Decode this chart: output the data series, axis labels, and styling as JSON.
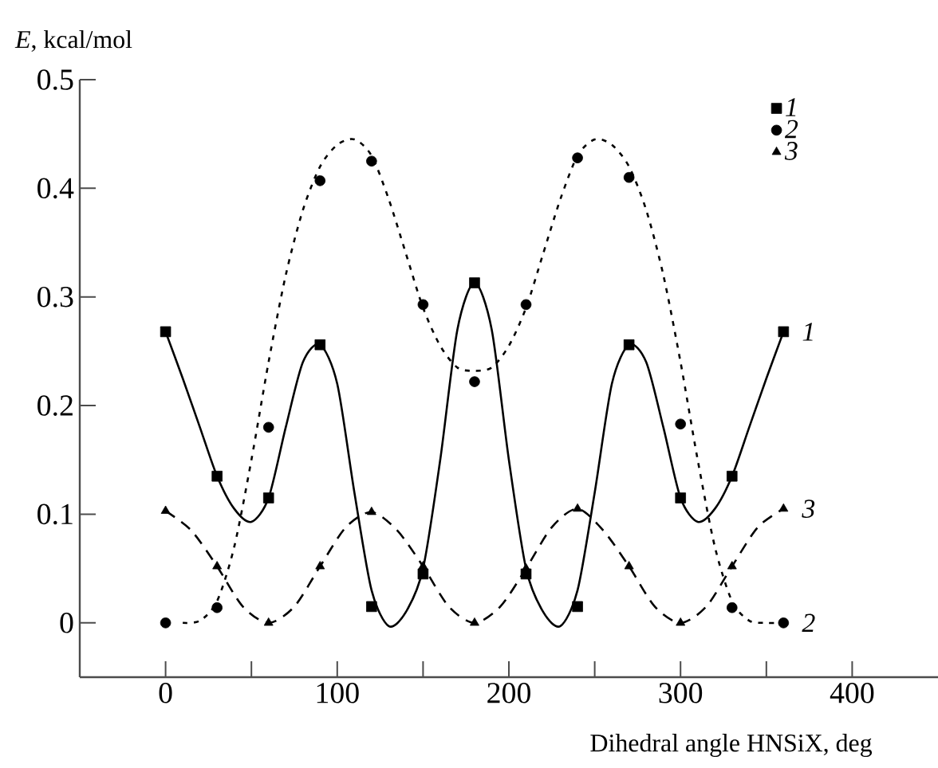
{
  "chart_data": {
    "type": "scatter",
    "xlabel": "Dihedral angle HNSiX, deg",
    "ylabel": "*E*, kcal/mol",
    "xlim": [
      -50,
      450
    ],
    "ylim": [
      -0.05,
      0.5
    ],
    "xticks": [
      0,
      {
        "value": 50,
        "label": null
      },
      100,
      {
        "value": 150,
        "label": null
      },
      200,
      {
        "value": 250,
        "label": null
      },
      300,
      {
        "value": 350,
        "label": null
      },
      400
    ],
    "yticks": [
      0,
      0.1,
      0.2,
      0.3,
      0.4,
      0.5
    ],
    "grid": false,
    "legend": "top right",
    "series": [
      {
        "name": "1",
        "marker": "square",
        "color": "#000000",
        "x": [
          0,
          30,
          60,
          90,
          120,
          150,
          180,
          210,
          240,
          270,
          300,
          330,
          360
        ],
        "values": [
          0.268,
          0.135,
          0.115,
          0.256,
          0.015,
          0.045,
          0.313,
          0.045,
          0.015,
          0.256,
          0.115,
          0.135,
          0.268
        ]
      },
      {
        "name": "2",
        "marker": "circle",
        "color": "#000000",
        "x": [
          0,
          30,
          60,
          90,
          120,
          150,
          180,
          210,
          240,
          270,
          300,
          330,
          360
        ],
        "values": [
          0,
          0.014,
          0.18,
          0.407,
          0.425,
          0.293,
          0.222,
          0.293,
          0.428,
          0.41,
          0.183,
          0.014,
          0
        ]
      },
      {
        "name": "3",
        "marker": "triangle",
        "color": "#000000",
        "x": [
          0,
          30,
          60,
          90,
          120,
          150,
          180,
          210,
          240,
          270,
          300,
          330,
          360
        ],
        "values": [
          0.103,
          0.052,
          0,
          0.052,
          0.102,
          0.052,
          0,
          0.05,
          0.105,
          0.052,
          0,
          0.052,
          0.105
        ]
      },
      {
        "name": "1",
        "type": "line",
        "line_style": "solid",
        "color": "#000000",
        "x": [
          0,
          10,
          20,
          30,
          40,
          50,
          60,
          70,
          80,
          90,
          100,
          110,
          120,
          130,
          140,
          150,
          160,
          170,
          180,
          190,
          200,
          210,
          220,
          230,
          240,
          250,
          260,
          270,
          280,
          290,
          300,
          310,
          320,
          330,
          340,
          350,
          360
        ],
        "values": [
          0.268,
          0.225,
          0.18,
          0.135,
          0.105,
          0.093,
          0.115,
          0.18,
          0.24,
          0.256,
          0.22,
          0.12,
          0.03,
          -0.003,
          0.01,
          0.05,
          0.15,
          0.27,
          0.313,
          0.27,
          0.15,
          0.05,
          0.01,
          -0.003,
          0.03,
          0.12,
          0.22,
          0.256,
          0.24,
          0.18,
          0.115,
          0.093,
          0.105,
          0.135,
          0.18,
          0.225,
          0.268
        ]
      },
      {
        "name": "2",
        "type": "line",
        "line_style": "dotted",
        "color": "#000000",
        "x": [
          10,
          20,
          30,
          40,
          50,
          60,
          70,
          80,
          90,
          100,
          110,
          120,
          130,
          140,
          150,
          160,
          170,
          180,
          190,
          200,
          210,
          220,
          230,
          240,
          250,
          260,
          270,
          280,
          290,
          300,
          310,
          320,
          330,
          340,
          350,
          360
        ],
        "values": [
          0,
          0.002,
          0.02,
          0.07,
          0.15,
          0.24,
          0.32,
          0.38,
          0.42,
          0.44,
          0.445,
          0.43,
          0.39,
          0.34,
          0.29,
          0.255,
          0.235,
          0.232,
          0.235,
          0.255,
          0.29,
          0.34,
          0.39,
          0.43,
          0.445,
          0.44,
          0.42,
          0.38,
          0.32,
          0.24,
          0.15,
          0.07,
          0.02,
          0.002,
          0,
          0
        ]
      },
      {
        "name": "3",
        "type": "line",
        "line_style": "dashed",
        "color": "#000000",
        "x": [
          0,
          15,
          30,
          45,
          60,
          75,
          90,
          105,
          120,
          135,
          150,
          165,
          180,
          195,
          210,
          225,
          240,
          255,
          270,
          285,
          300,
          315,
          330,
          345,
          360
        ],
        "values": [
          0.103,
          0.085,
          0.052,
          0.015,
          0,
          0.015,
          0.052,
          0.088,
          0.102,
          0.085,
          0.052,
          0.015,
          0,
          0.015,
          0.05,
          0.088,
          0.105,
          0.085,
          0.052,
          0.015,
          0,
          0.015,
          0.052,
          0.088,
          0.105
        ]
      }
    ]
  }
}
